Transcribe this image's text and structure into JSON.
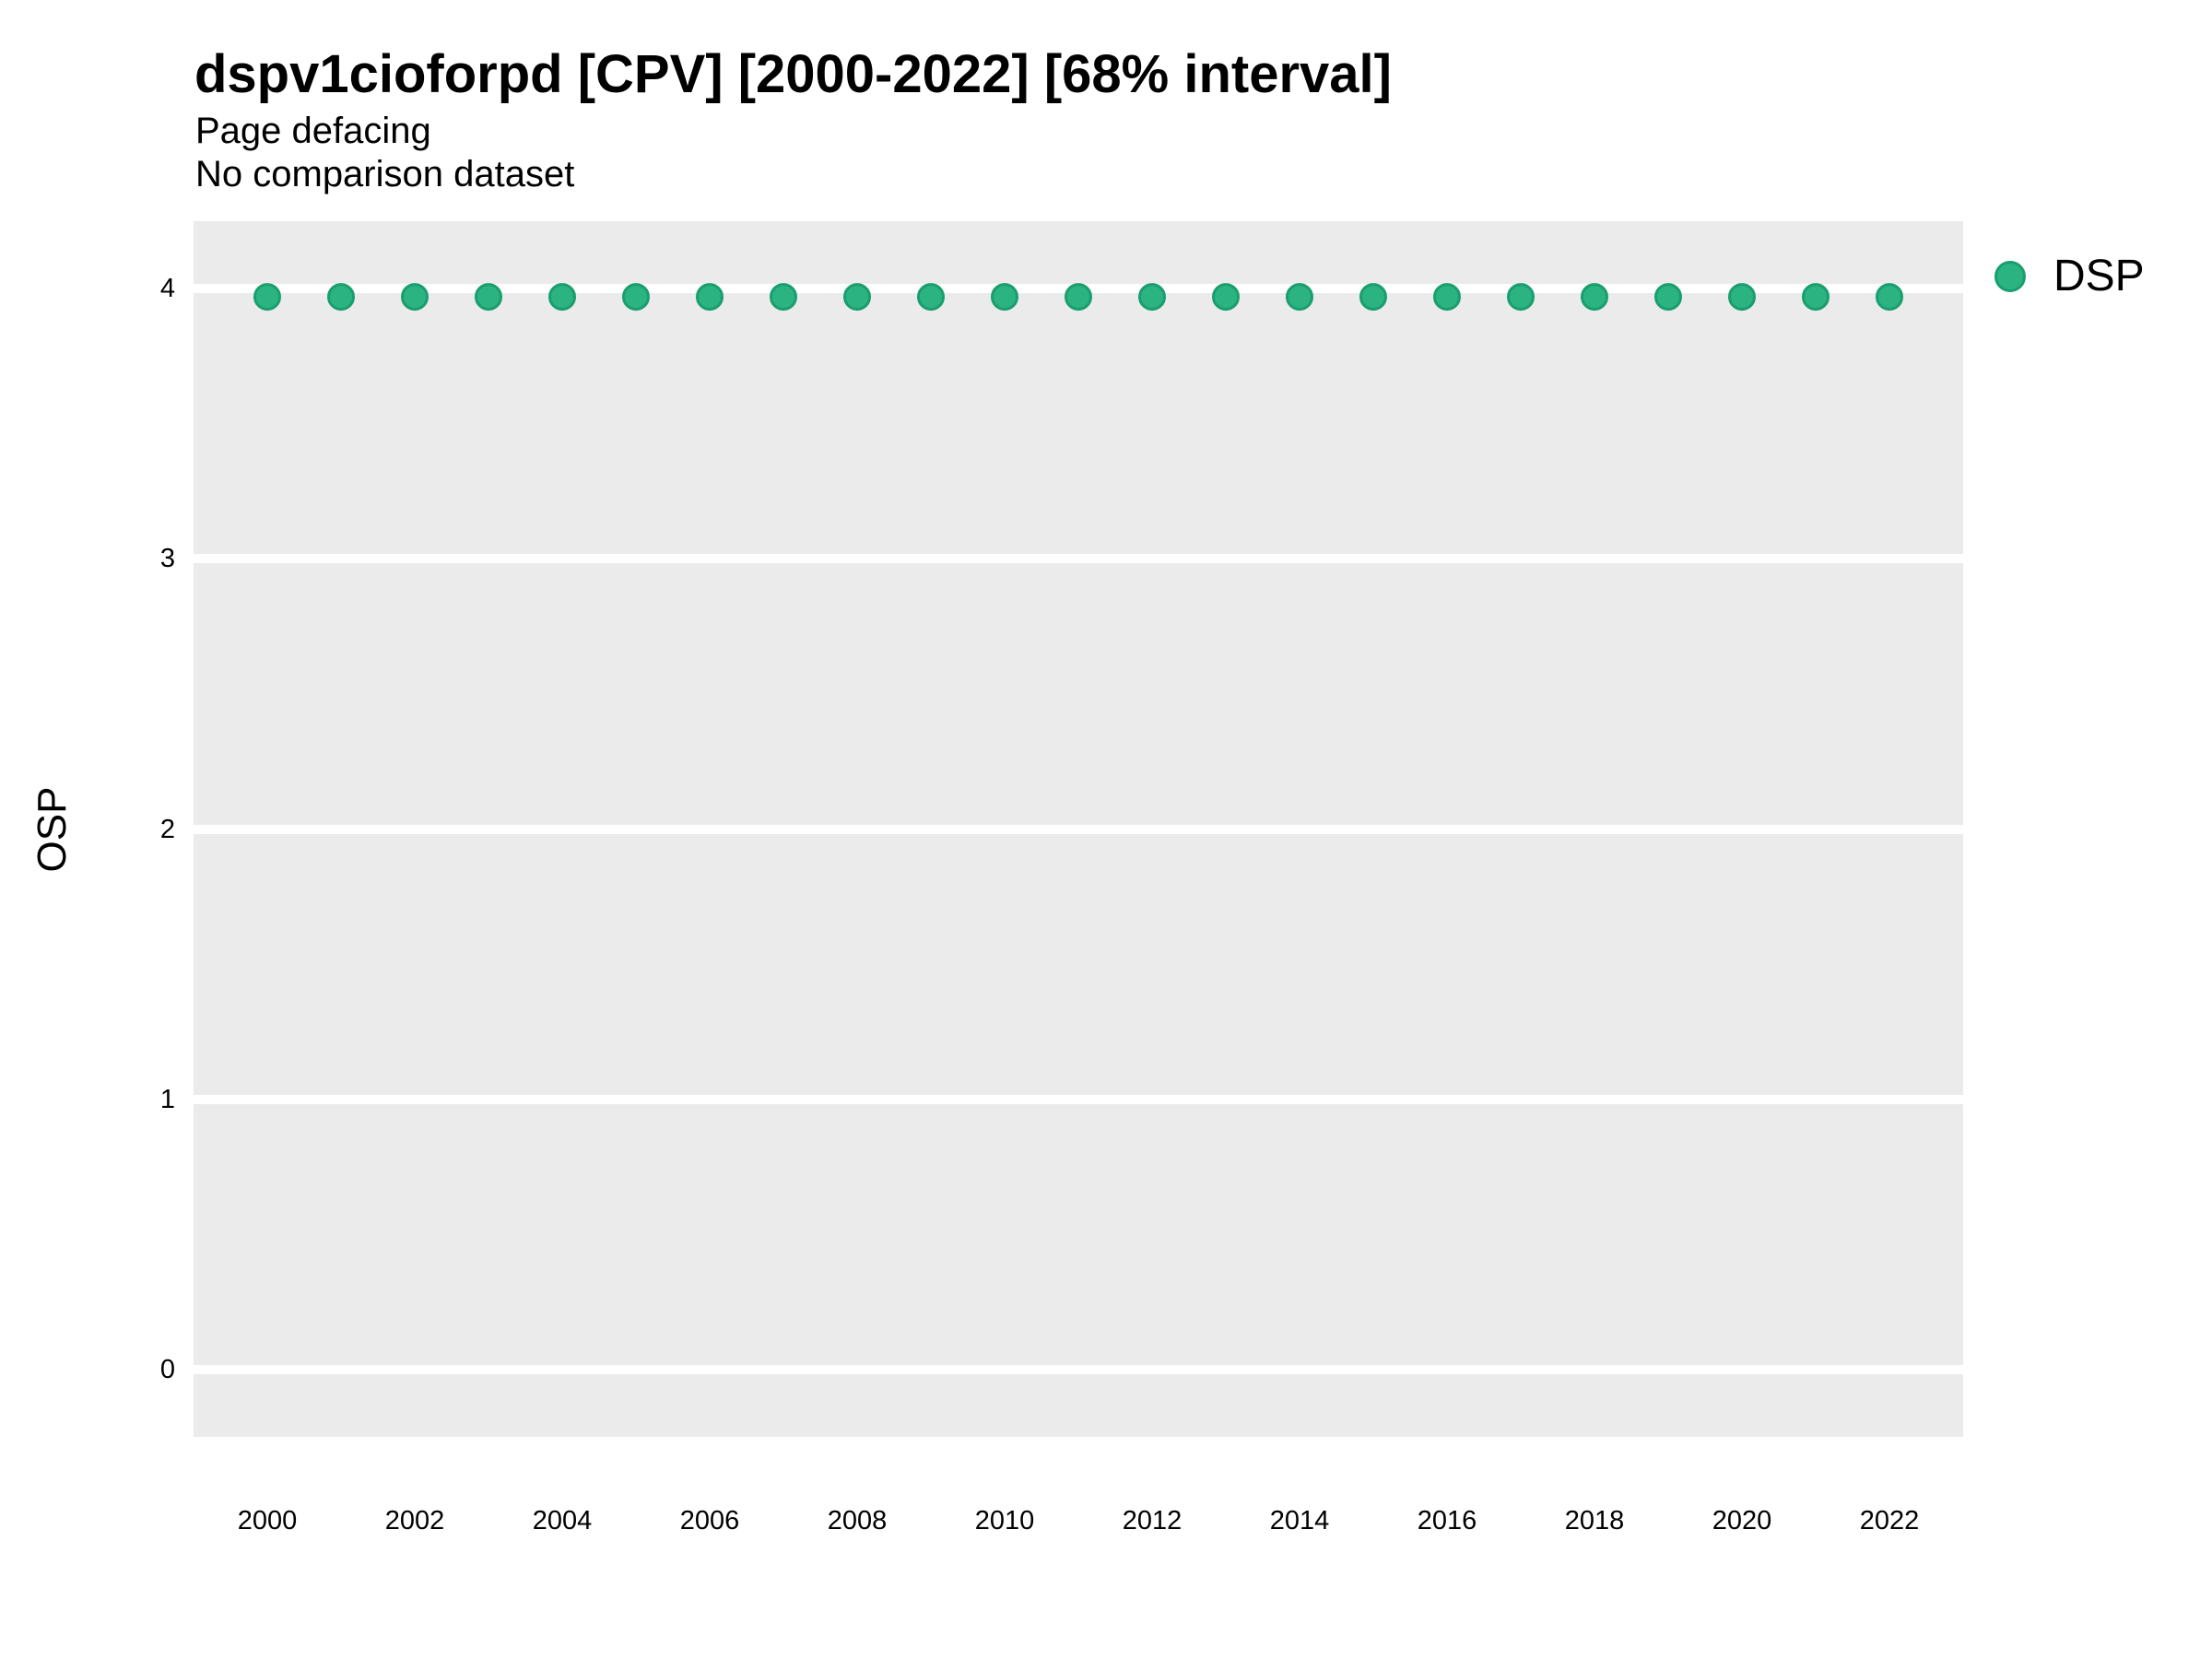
{
  "header": {
    "title": "dspv1cioforpd [CPV] [2000-2022] [68% interval]",
    "subtitle": "Page defacing",
    "note": "No comparison dataset"
  },
  "legend": {
    "entries": [
      {
        "label": "DSP",
        "fill": "#2cb382",
        "edge": "#1a9e6f"
      }
    ]
  },
  "chart_data": {
    "type": "scatter",
    "title": "dspv1cioforpd [CPV] [2000-2022] [68% interval]",
    "subtitle": "Page defacing",
    "note": "No comparison dataset",
    "xlabel": "",
    "ylabel": "OSP",
    "xlim": [
      1999,
      2023
    ],
    "ylim": [
      -0.25,
      4.25
    ],
    "x_ticks": [
      2000,
      2002,
      2004,
      2006,
      2008,
      2010,
      2012,
      2014,
      2016,
      2018,
      2020,
      2022
    ],
    "y_ticks": [
      0,
      1,
      2,
      3,
      4
    ],
    "grid": {
      "horizontal_major": true,
      "vertical": false,
      "color": "#ffffff"
    },
    "panel_bg": "#ebebeb",
    "legend_position": "top-right",
    "series": [
      {
        "name": "DSP",
        "marker": "circle",
        "fill": "#2cb382",
        "edge": "#1a9e6f",
        "x": [
          2000,
          2001,
          2002,
          2003,
          2004,
          2005,
          2006,
          2007,
          2008,
          2009,
          2010,
          2011,
          2012,
          2013,
          2014,
          2015,
          2016,
          2017,
          2018,
          2019,
          2020,
          2021,
          2022
        ],
        "y": [
          3.97,
          3.97,
          3.97,
          3.97,
          3.97,
          3.97,
          3.97,
          3.97,
          3.97,
          3.97,
          3.97,
          3.97,
          3.97,
          3.97,
          3.97,
          3.97,
          3.97,
          3.97,
          3.97,
          3.97,
          3.97,
          3.97,
          3.97
        ]
      }
    ]
  }
}
